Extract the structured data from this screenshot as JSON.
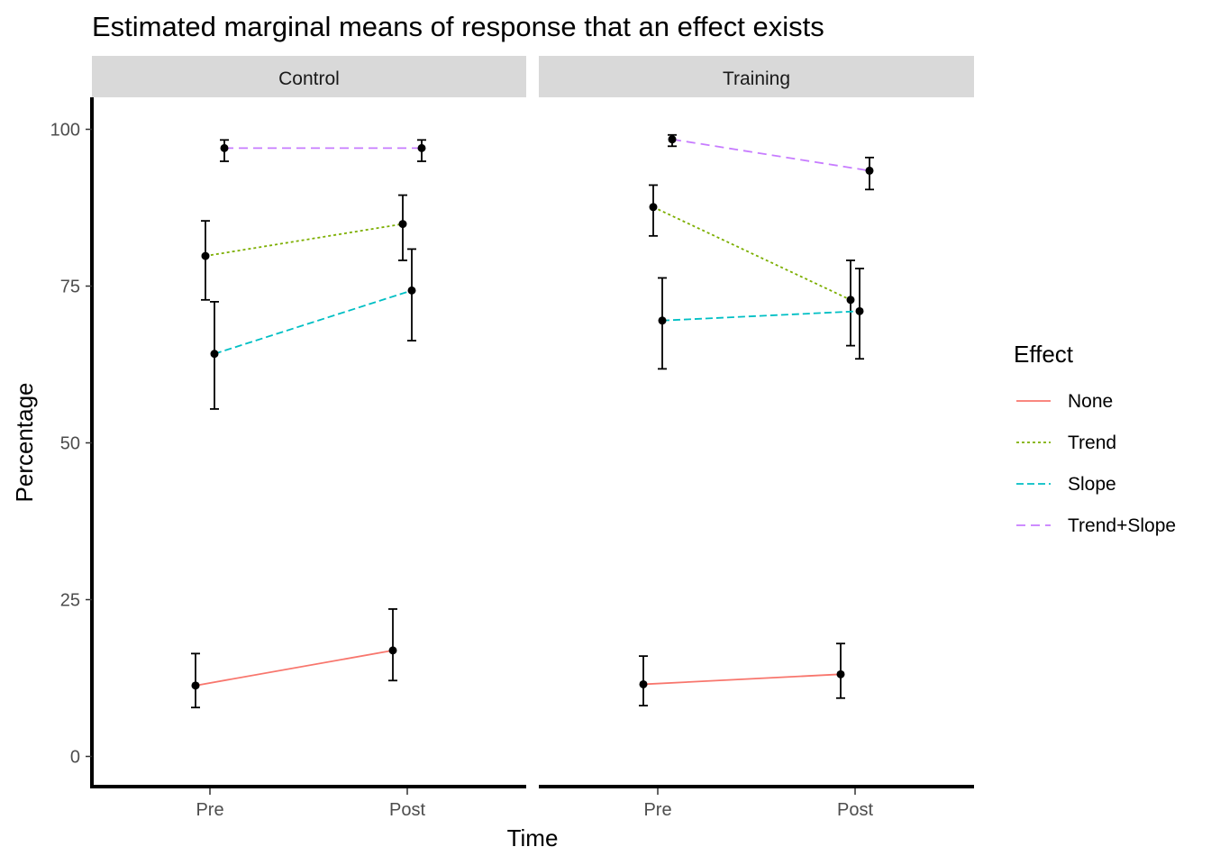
{
  "chart_data": {
    "type": "line",
    "title": "Estimated marginal means of response that an effect exists",
    "xlabel": "Time",
    "ylabel": "Percentage",
    "categories": [
      "Pre",
      "Post"
    ],
    "ylim": [
      -5,
      105
    ],
    "yticks": [
      0,
      25,
      50,
      75,
      100
    ],
    "grid": false,
    "legend": {
      "title": "Effect",
      "position": "right",
      "entries": [
        "None",
        "Trend",
        "Slope",
        "Trend+Slope"
      ]
    },
    "series_styles": [
      {
        "name": "None",
        "color": "#F8766D",
        "dash": "solid"
      },
      {
        "name": "Trend",
        "color": "#7CAE00",
        "dash": "dotted"
      },
      {
        "name": "Slope",
        "color": "#00BFC4",
        "dash": "dashed"
      },
      {
        "name": "Trend+Slope",
        "color": "#C77CFF",
        "dash": "longdash"
      }
    ],
    "facets": [
      {
        "label": "Control",
        "series": [
          {
            "name": "None",
            "values": [
              11.3,
              16.9
            ],
            "lower": [
              7.8,
              12.1
            ],
            "upper": [
              16.4,
              23.5
            ]
          },
          {
            "name": "Trend",
            "values": [
              79.8,
              84.9
            ],
            "lower": [
              72.8,
              79.1
            ],
            "upper": [
              85.4,
              89.5
            ]
          },
          {
            "name": "Slope",
            "values": [
              64.2,
              74.3
            ],
            "lower": [
              55.4,
              66.3
            ],
            "upper": [
              72.5,
              80.9
            ]
          },
          {
            "name": "Trend+Slope",
            "values": [
              97.0,
              97.0
            ],
            "lower": [
              94.9,
              94.9
            ],
            "upper": [
              98.3,
              98.3
            ]
          }
        ]
      },
      {
        "label": "Training",
        "series": [
          {
            "name": "None",
            "values": [
              11.5,
              13.1
            ],
            "lower": [
              8.1,
              9.3
            ],
            "upper": [
              16.0,
              18.0
            ]
          },
          {
            "name": "Trend",
            "values": [
              87.6,
              72.8
            ],
            "lower": [
              83.0,
              65.5
            ],
            "upper": [
              91.1,
              79.1
            ]
          },
          {
            "name": "Slope",
            "values": [
              69.5,
              71.0
            ],
            "lower": [
              61.8,
              63.4
            ],
            "upper": [
              76.3,
              77.8
            ]
          },
          {
            "name": "Trend+Slope",
            "values": [
              98.4,
              93.4
            ],
            "lower": [
              97.3,
              90.4
            ],
            "upper": [
              99.1,
              95.5
            ]
          }
        ]
      }
    ]
  }
}
